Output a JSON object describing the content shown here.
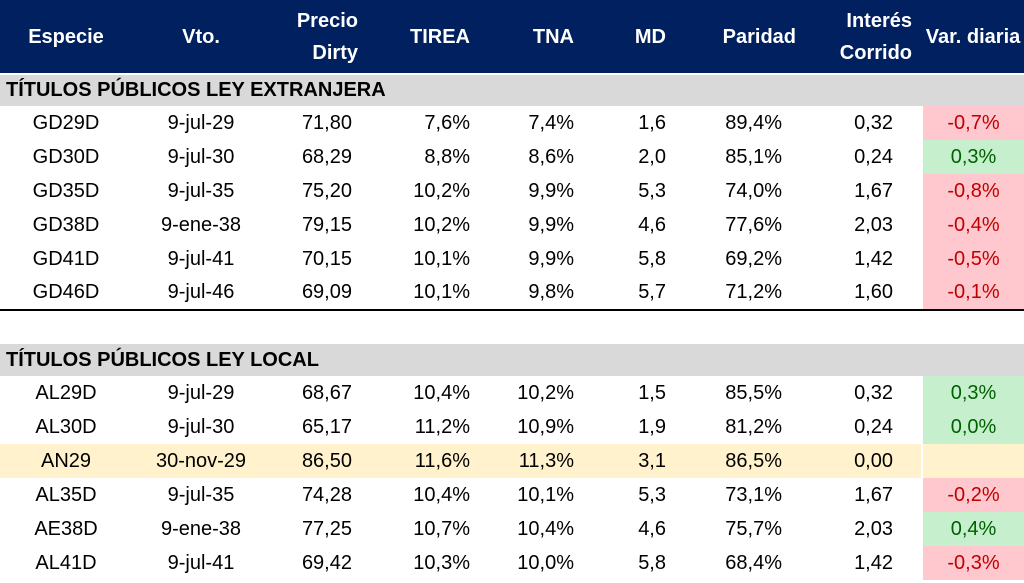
{
  "headers": [
    "Especie",
    "Vto.",
    "Precio Dirty",
    "TIREA",
    "TNA",
    "MD",
    "Paridad",
    "Interés Corrido",
    "Var. diaria"
  ],
  "sections": [
    {
      "title": "TÍTULOS PÚBLICOS LEY EXTRANJERA",
      "rows": [
        [
          "GD29D",
          "9-jul-29",
          "71,80",
          "7,6%",
          "7,4%",
          "1,6",
          "89,4%",
          "0,32",
          "-0,7%"
        ],
        [
          "GD30D",
          "9-jul-30",
          "68,29",
          "8,8%",
          "8,6%",
          "2,0",
          "85,1%",
          "0,24",
          "0,3%"
        ],
        [
          "GD35D",
          "9-jul-35",
          "75,20",
          "10,2%",
          "9,9%",
          "5,3",
          "74,0%",
          "1,67",
          "-0,8%"
        ],
        [
          "GD38D",
          "9-ene-38",
          "79,15",
          "10,2%",
          "9,9%",
          "4,6",
          "77,6%",
          "2,03",
          "-0,4%"
        ],
        [
          "GD41D",
          "9-jul-41",
          "70,15",
          "10,1%",
          "9,9%",
          "5,8",
          "69,2%",
          "1,42",
          "-0,5%"
        ],
        [
          "GD46D",
          "9-jul-46",
          "69,09",
          "10,1%",
          "9,8%",
          "5,7",
          "71,2%",
          "1,60",
          "-0,1%"
        ]
      ]
    },
    {
      "title": "TÍTULOS PÚBLICOS LEY LOCAL",
      "rows": [
        [
          "AL29D",
          "9-jul-29",
          "68,67",
          "10,4%",
          "10,2%",
          "1,5",
          "85,5%",
          "0,32",
          "0,3%"
        ],
        [
          "AL30D",
          "9-jul-30",
          "65,17",
          "11,2%",
          "10,9%",
          "1,9",
          "81,2%",
          "0,24",
          "0,0%"
        ],
        [
          "AN29",
          "30-nov-29",
          "86,50",
          "11,6%",
          "11,3%",
          "3,1",
          "86,5%",
          "0,00",
          ""
        ],
        [
          "AL35D",
          "9-jul-35",
          "74,28",
          "10,4%",
          "10,1%",
          "5,3",
          "73,1%",
          "1,67",
          "-0,2%"
        ],
        [
          "AE38D",
          "9-ene-38",
          "77,25",
          "10,7%",
          "10,4%",
          "4,6",
          "75,7%",
          "2,03",
          "0,4%"
        ],
        [
          "AL41D",
          "9-jul-41",
          "69,42",
          "10,3%",
          "10,0%",
          "5,8",
          "68,4%",
          "1,42",
          "-0,3%"
        ]
      ]
    }
  ],
  "highlight_row": "AN29",
  "colors": {
    "header": "#002060",
    "section": "#d9d9d9",
    "neg_bg": "#ffc7ce",
    "neg_fg": "#c00000",
    "pos_bg": "#c6efce",
    "pos_fg": "#006100",
    "highlight": "#fff2cc"
  }
}
